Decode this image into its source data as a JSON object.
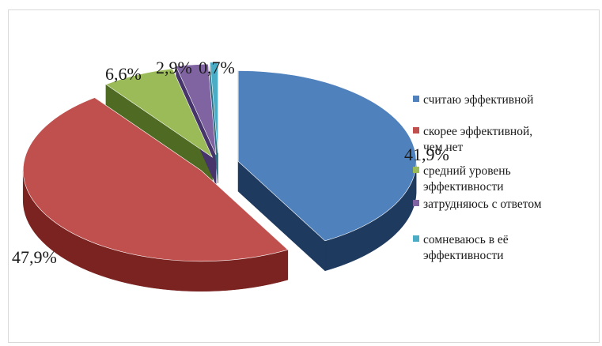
{
  "chart_data": {
    "type": "pie",
    "style": "3d-exploded",
    "legend_position": "right",
    "categories": [
      "считаю эффективной",
      "скорее эффективной, чем нет",
      "средний уровень эффективности",
      "затрудняюсь с ответом",
      "сомневаюсь в её эффективности"
    ],
    "legend": [
      [
        "считаю эффективной"
      ],
      [
        "скорее эффективной,",
        "чем нет"
      ],
      [
        "средний уровень",
        "эффективности"
      ],
      [
        "затрудняюсь с ответом"
      ],
      [
        "сомневаюсь в её",
        "эффективности"
      ]
    ],
    "values": [
      41.9,
      47.9,
      6.6,
      2.9,
      0.7
    ],
    "value_labels": [
      "41,9%",
      "47,9%",
      "6,6%",
      "2,9%",
      "0,7%"
    ],
    "colors": [
      "#4f81bd",
      "#c0504d",
      "#9bbb59",
      "#8064a2",
      "#4bacc6"
    ],
    "side_colors": [
      "#1f3a5f",
      "#7a2321",
      "#4f6a22",
      "#46346a",
      "#2a7184"
    ]
  }
}
